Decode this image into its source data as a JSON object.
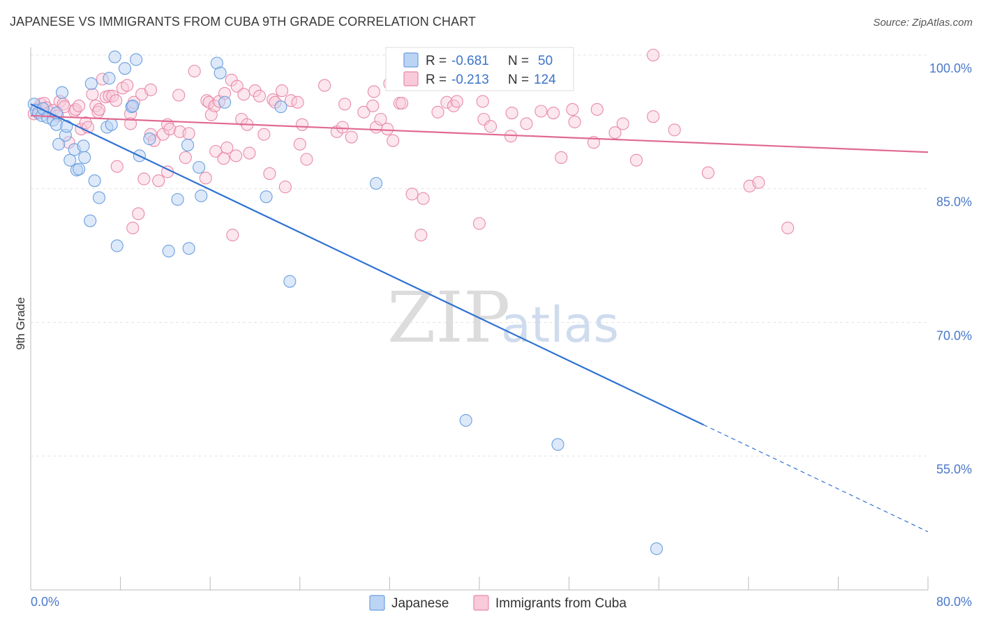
{
  "title": "JAPANESE VS IMMIGRANTS FROM CUBA 9TH GRADE CORRELATION CHART",
  "source": "Source: ZipAtlas.com",
  "watermark": {
    "part1": "ZIP",
    "part2": "atlas"
  },
  "colors": {
    "japanese": "#6a9fe0",
    "japanese_fill": "#bcd4f4",
    "japanese_line": "#2f72d2",
    "cuba": "#e88aa8",
    "cuba_fill": "#f9cad9",
    "cuba_line": "#e06a93",
    "axis_text": "#4a78c9",
    "grid": "#e3e3e3"
  },
  "legend_stats": {
    "r_label": "R =",
    "n_label": "N =",
    "rows": [
      {
        "series": "Japanese",
        "r": "-0.681",
        "n": "50"
      },
      {
        "series": "Immigrants from Cuba",
        "r": "-0.213",
        "n": "124"
      }
    ]
  },
  "chart_data": {
    "type": "scatter",
    "title": "JAPANESE VS IMMIGRANTS FROM CUBA 9TH GRADE CORRELATION CHART",
    "xlabel": "",
    "ylabel": "9th Grade",
    "xlim": [
      0,
      80
    ],
    "ylim": [
      40,
      101
    ],
    "x_tick_labels": [
      "0.0%",
      "80.0%"
    ],
    "x_tick_positions": [
      0,
      8,
      16,
      24,
      32,
      40,
      48,
      56,
      64,
      72,
      80
    ],
    "y_ticks": [
      55,
      70,
      85,
      100
    ],
    "y_tick_labels": [
      "55.0%",
      "70.0%",
      "85.0%",
      "100.0%"
    ],
    "grid": true,
    "legend_position": "bottom",
    "series": [
      {
        "name": "Japanese",
        "trend": {
          "x0": 0,
          "y0": 94.5,
          "x1": 60,
          "y1": 58.5,
          "dash_to_x": 80,
          "dash_to_y": 46.5
        },
        "points": [
          [
            0.3,
            94.5
          ],
          [
            0.5,
            93.8
          ],
          [
            0.7,
            93.5
          ],
          [
            1.0,
            93.2
          ],
          [
            1.1,
            94.0
          ],
          [
            1.5,
            93.0
          ],
          [
            2.0,
            92.7
          ],
          [
            2.3,
            93.5
          ],
          [
            2.3,
            92.2
          ],
          [
            2.5,
            90.0
          ],
          [
            2.8,
            95.8
          ],
          [
            3.1,
            91.0
          ],
          [
            3.2,
            92.0
          ],
          [
            3.5,
            88.2
          ],
          [
            3.9,
            89.4
          ],
          [
            4.1,
            87.1
          ],
          [
            4.3,
            87.2
          ],
          [
            4.7,
            89.8
          ],
          [
            4.8,
            88.5
          ],
          [
            5.3,
            81.4
          ],
          [
            5.4,
            96.8
          ],
          [
            5.7,
            85.9
          ],
          [
            6.1,
            84.0
          ],
          [
            6.8,
            91.9
          ],
          [
            7.0,
            97.4
          ],
          [
            7.2,
            92.2
          ],
          [
            7.5,
            99.8
          ],
          [
            7.7,
            78.6
          ],
          [
            8.4,
            98.5
          ],
          [
            9.0,
            94.2
          ],
          [
            9.1,
            94.3
          ],
          [
            9.4,
            99.5
          ],
          [
            9.7,
            88.7
          ],
          [
            10.6,
            90.6
          ],
          [
            12.3,
            78.0
          ],
          [
            13.1,
            83.8
          ],
          [
            14.0,
            89.9
          ],
          [
            14.1,
            78.3
          ],
          [
            15.0,
            87.4
          ],
          [
            15.2,
            84.2
          ],
          [
            16.6,
            99.1
          ],
          [
            16.9,
            98.0
          ],
          [
            17.3,
            94.7
          ],
          [
            21.0,
            84.1
          ],
          [
            22.3,
            94.2
          ],
          [
            23.1,
            74.6
          ],
          [
            30.8,
            85.6
          ],
          [
            38.8,
            59.0
          ],
          [
            47.0,
            56.3
          ],
          [
            55.8,
            44.6
          ]
        ]
      },
      {
        "name": "Immigrants from Cuba",
        "trend": {
          "x0": 0,
          "y0": 93.2,
          "x1": 80,
          "y1": 89.1
        },
        "points": [
          [
            0.3,
            93.4
          ],
          [
            0.6,
            94.0
          ],
          [
            0.9,
            94.5
          ],
          [
            1.2,
            94.6
          ],
          [
            1.4,
            94.1
          ],
          [
            1.7,
            93.6
          ],
          [
            2.0,
            93.8
          ],
          [
            2.4,
            93.2
          ],
          [
            2.6,
            94.8
          ],
          [
            2.9,
            94.5
          ],
          [
            3.0,
            94.2
          ],
          [
            3.4,
            90.2
          ],
          [
            3.9,
            93.7
          ],
          [
            4.0,
            93.9
          ],
          [
            4.3,
            94.3
          ],
          [
            4.5,
            91.7
          ],
          [
            4.9,
            92.4
          ],
          [
            5.1,
            91.9
          ],
          [
            5.5,
            95.6
          ],
          [
            5.8,
            94.3
          ],
          [
            6.0,
            93.6
          ],
          [
            6.1,
            93.9
          ],
          [
            6.4,
            97.3
          ],
          [
            6.7,
            95.3
          ],
          [
            7.0,
            95.4
          ],
          [
            7.3,
            95.4
          ],
          [
            7.6,
            94.9
          ],
          [
            7.7,
            87.5
          ],
          [
            8.2,
            96.3
          ],
          [
            8.6,
            96.6
          ],
          [
            8.9,
            93.4
          ],
          [
            8.9,
            92.3
          ],
          [
            9.1,
            80.6
          ],
          [
            9.2,
            94.7
          ],
          [
            9.6,
            82.2
          ],
          [
            9.9,
            95.6
          ],
          [
            10.1,
            86.1
          ],
          [
            10.7,
            91.1
          ],
          [
            10.7,
            96.1
          ],
          [
            11.0,
            90.4
          ],
          [
            11.4,
            85.9
          ],
          [
            11.8,
            91.1
          ],
          [
            12.2,
            86.9
          ],
          [
            12.2,
            92.2
          ],
          [
            12.4,
            91.7
          ],
          [
            13.2,
            95.5
          ],
          [
            13.3,
            91.4
          ],
          [
            13.8,
            88.5
          ],
          [
            14.1,
            91.2
          ],
          [
            14.6,
            98.2
          ],
          [
            15.6,
            86.2
          ],
          [
            15.7,
            94.9
          ],
          [
            15.9,
            94.7
          ],
          [
            16.1,
            93.3
          ],
          [
            16.4,
            94.3
          ],
          [
            16.5,
            89.2
          ],
          [
            16.8,
            94.8
          ],
          [
            17.2,
            88.4
          ],
          [
            17.3,
            95.7
          ],
          [
            17.5,
            89.6
          ],
          [
            17.9,
            97.2
          ],
          [
            18.0,
            79.8
          ],
          [
            18.3,
            88.7
          ],
          [
            18.4,
            96.5
          ],
          [
            18.8,
            92.8
          ],
          [
            19.0,
            95.6
          ],
          [
            19.3,
            92.2
          ],
          [
            19.5,
            89.0
          ],
          [
            20.0,
            96.0
          ],
          [
            20.4,
            95.4
          ],
          [
            20.8,
            91.1
          ],
          [
            21.3,
            86.7
          ],
          [
            21.6,
            95.0
          ],
          [
            21.8,
            94.7
          ],
          [
            22.4,
            96.0
          ],
          [
            22.7,
            85.2
          ],
          [
            23.2,
            94.9
          ],
          [
            23.8,
            94.7
          ],
          [
            24.0,
            90.0
          ],
          [
            24.2,
            92.2
          ],
          [
            24.6,
            88.3
          ],
          [
            26.2,
            96.6
          ],
          [
            27.3,
            91.4
          ],
          [
            27.8,
            91.9
          ],
          [
            28.0,
            94.5
          ],
          [
            28.6,
            90.8
          ],
          [
            29.7,
            93.6
          ],
          [
            30.5,
            94.3
          ],
          [
            30.6,
            95.9
          ],
          [
            30.8,
            91.9
          ],
          [
            31.2,
            92.8
          ],
          [
            31.8,
            91.7
          ],
          [
            32.0,
            96.8
          ],
          [
            32.3,
            90.4
          ],
          [
            32.9,
            94.6
          ],
          [
            33.1,
            94.6
          ],
          [
            34.0,
            84.4
          ],
          [
            34.8,
            79.8
          ],
          [
            35.0,
            83.9
          ],
          [
            36.3,
            93.6
          ],
          [
            37.1,
            94.7
          ],
          [
            37.7,
            94.3
          ],
          [
            38.0,
            94.8
          ],
          [
            40.0,
            81.1
          ],
          [
            40.3,
            94.8
          ],
          [
            40.4,
            92.8
          ],
          [
            41.0,
            92.0
          ],
          [
            42.8,
            90.9
          ],
          [
            42.9,
            93.5
          ],
          [
            44.2,
            92.3
          ],
          [
            45.5,
            93.7
          ],
          [
            46.6,
            93.5
          ],
          [
            47.3,
            88.5
          ],
          [
            48.3,
            93.9
          ],
          [
            48.5,
            92.5
          ],
          [
            50.2,
            90.2
          ],
          [
            50.5,
            93.9
          ],
          [
            52.1,
            91.3
          ],
          [
            52.8,
            92.3
          ],
          [
            54.0,
            88.2
          ],
          [
            55.5,
            93.1
          ],
          [
            57.4,
            91.6
          ],
          [
            60.4,
            86.8
          ],
          [
            64.1,
            85.3
          ],
          [
            64.9,
            85.7
          ],
          [
            67.5,
            80.6
          ]
        ],
        "extra_points_top": [
          [
            33.8,
            100.0
          ],
          [
            55.5,
            100.0
          ]
        ]
      }
    ]
  },
  "legend": [
    {
      "label": "Japanese"
    },
    {
      "label": "Immigrants from Cuba"
    }
  ]
}
